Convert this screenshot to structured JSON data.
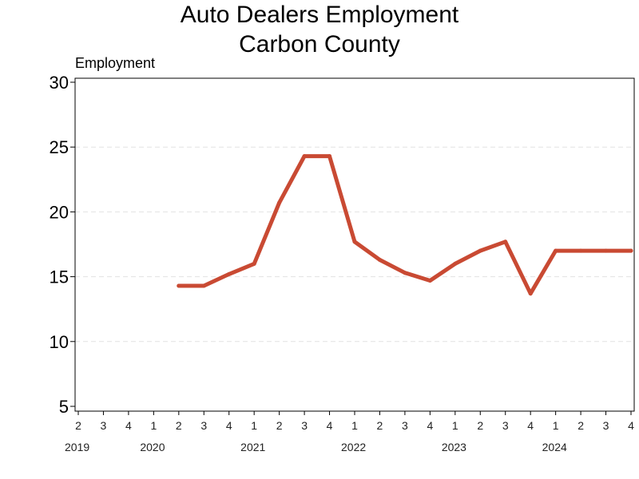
{
  "chart_data": {
    "type": "line",
    "title": "Auto Dealers Employment",
    "subtitle": "Carbon County",
    "ylabel": "Employment",
    "xlabel": "",
    "ylim": [
      5,
      30
    ],
    "yticks": [
      5,
      10,
      15,
      20,
      25,
      30
    ],
    "grid": true,
    "x": [
      "2019 Q2",
      "2019 Q3",
      "2019 Q4",
      "2020 Q1",
      "2020 Q2",
      "2020 Q3",
      "2020 Q4",
      "2021 Q1",
      "2021 Q2",
      "2021 Q3",
      "2021 Q4",
      "2022 Q1",
      "2022 Q2",
      "2022 Q3",
      "2022 Q4",
      "2023 Q1",
      "2023 Q2",
      "2023 Q3",
      "2023 Q4",
      "2024 Q1",
      "2024 Q2",
      "2024 Q3",
      "2024 Q4"
    ],
    "xtick_labels": [
      "2",
      "3",
      "4",
      "1",
      "2",
      "3",
      "4",
      "1",
      "2",
      "3",
      "4",
      "1",
      "2",
      "3",
      "4",
      "1",
      "2",
      "3",
      "4",
      "1",
      "2",
      "3",
      "4"
    ],
    "year_labels": [
      {
        "label": "2019",
        "index": 0
      },
      {
        "label": "2020",
        "index": 3
      },
      {
        "label": "2021",
        "index": 7
      },
      {
        "label": "2022",
        "index": 11
      },
      {
        "label": "2023",
        "index": 15
      },
      {
        "label": "2024",
        "index": 19
      }
    ],
    "series": [
      {
        "color": "#c94a33",
        "values": [
          null,
          null,
          null,
          null,
          14.3,
          14.3,
          15.2,
          16.0,
          20.7,
          24.3,
          24.3,
          17.7,
          16.3,
          15.3,
          14.7,
          16.0,
          17.0,
          17.7,
          13.7,
          17.0,
          17.0,
          17.0,
          17.0
        ]
      }
    ]
  }
}
